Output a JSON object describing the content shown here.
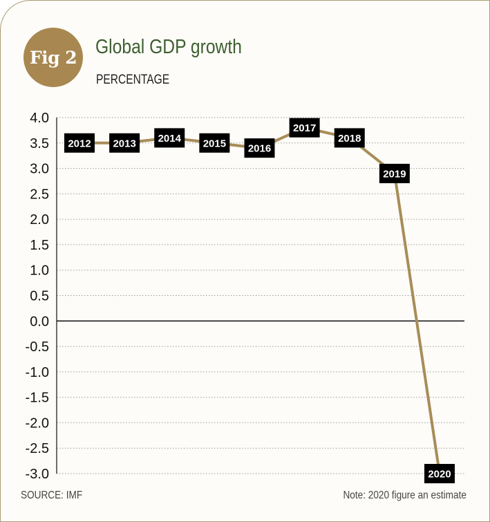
{
  "figure": {
    "badge": "Fig 2",
    "title": "Global GDP growth",
    "subtitle": "PERCENTAGE",
    "source": "SOURCE: IMF",
    "note": "Note: 2020 figure an estimate"
  },
  "colors": {
    "line": "#a88c58",
    "badge": "#a88850",
    "title": "#3e5e30",
    "label_bg": "#000000"
  },
  "chart_data": {
    "type": "line",
    "x": [
      "2012",
      "2013",
      "2014",
      "2015",
      "2016",
      "2017",
      "2018",
      "2019",
      "2020"
    ],
    "series": [
      {
        "values": [
          3.5,
          3.5,
          3.6,
          3.5,
          3.4,
          3.8,
          3.6,
          2.9,
          -3.0
        ]
      }
    ],
    "ylim": [
      -3.0,
      4.0
    ],
    "yticks": [
      "4.0",
      "3.5",
      "3.0",
      "2.5",
      "2.0",
      "1.5",
      "1.0",
      "0.5",
      "0.0",
      "-0.5",
      "-1.0",
      "-1.5",
      "-2.0",
      "-2.5",
      "-3.0"
    ],
    "grid": true,
    "xlabel": "",
    "ylabel": ""
  }
}
